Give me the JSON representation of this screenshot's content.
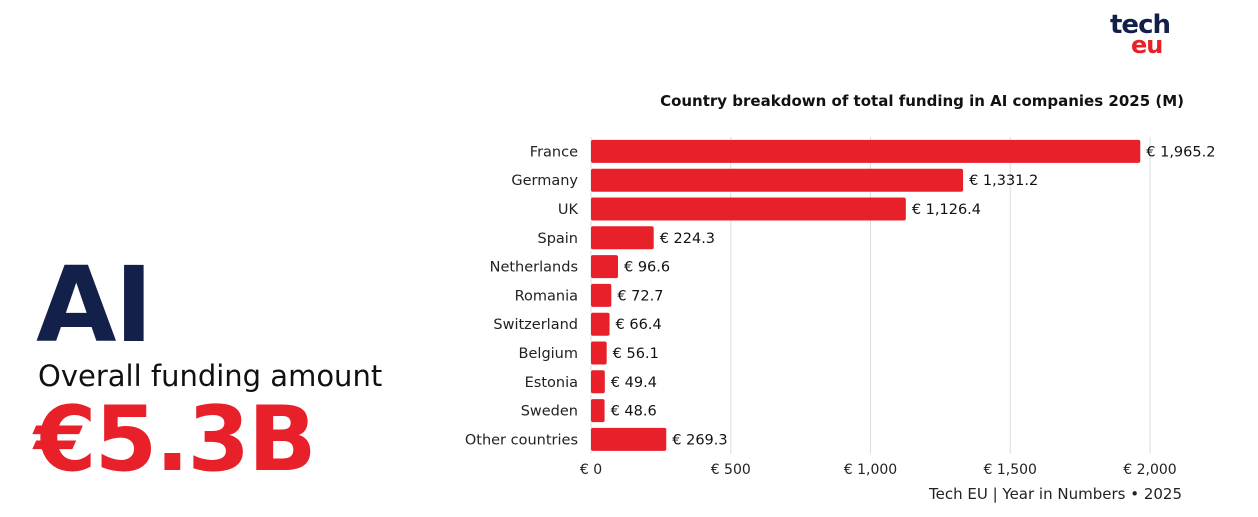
{
  "brand": {
    "logo_top": "tech",
    "logo_bottom": "eu"
  },
  "hero": {
    "topic": "AI",
    "subtitle": "Overall funding amount",
    "amount": "€5.3B"
  },
  "colors": {
    "accent": "#e8202a",
    "navy": "#13214a",
    "grid": "#dddddd"
  },
  "footer": "Tech EU | Year in Numbers • 2025",
  "chart_data": {
    "type": "bar",
    "orientation": "horizontal",
    "title": "Country breakdown of total funding in AI companies 2025 (M)",
    "categories": [
      "France",
      "Germany",
      "UK",
      "Spain",
      "Netherlands",
      "Romania",
      "Switzerland",
      "Belgium",
      "Estonia",
      "Sweden",
      "Other countries"
    ],
    "values": [
      1965.2,
      1331.2,
      1126.4,
      224.3,
      96.6,
      72.7,
      66.4,
      56.1,
      49.4,
      48.6,
      269.3
    ],
    "value_labels": [
      "€ 1,965.2",
      "€ 1,331.2",
      "€ 1,126.4",
      "€ 224.3",
      "€ 96.6",
      "€ 72.7",
      "€ 66.4",
      "€ 56.1",
      "€ 49.4",
      "€ 48.6",
      "€ 269.3"
    ],
    "xlim": [
      0,
      2000
    ],
    "x_ticks": [
      0,
      500,
      1000,
      1500,
      2000
    ],
    "x_tick_labels": [
      "€ 0",
      "€ 500",
      "€ 1,000",
      "€ 1,500",
      "€ 2,000"
    ],
    "grid": "vertical",
    "legend": "none"
  }
}
